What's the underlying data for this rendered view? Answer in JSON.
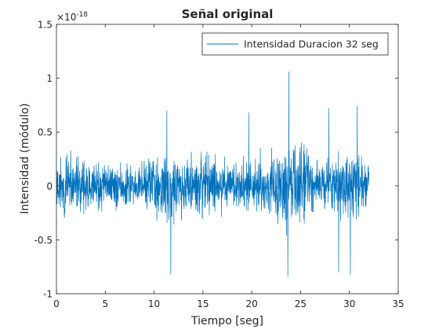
{
  "chart_data": {
    "type": "line",
    "title": "Señal original",
    "xlabel": "Tiempo [seg]",
    "ylabel": "Intensidad (módulo)",
    "xlim": [
      0,
      35
    ],
    "ylim": [
      -1.0,
      1.5
    ],
    "y_exponent_label": "×10",
    "y_exponent_power": "-18",
    "x_ticks": [
      0,
      5,
      10,
      15,
      20,
      25,
      30,
      35
    ],
    "x_tick_labels": [
      "0",
      "5",
      "10",
      "15",
      "20",
      "25",
      "30",
      "35"
    ],
    "y_ticks": [
      -1.0,
      -0.5,
      0,
      0.5,
      1.0,
      1.5
    ],
    "y_tick_labels": [
      "-1",
      "-0.5",
      "0",
      "0.5",
      "1",
      "1.5"
    ],
    "grid": false,
    "legend_position": "top-right",
    "series": [
      {
        "name": "Intensidad Duracion 32 seg",
        "color": "#0072BD",
        "x_range": [
          0,
          32
        ],
        "sample_count": 1600,
        "envelope": [
          [
            0.0,
            0.48
          ],
          [
            1.0,
            0.52
          ],
          [
            2.0,
            0.42
          ],
          [
            3.0,
            0.4
          ],
          [
            4.0,
            0.45
          ],
          [
            5.0,
            0.38
          ],
          [
            6.0,
            0.35
          ],
          [
            7.0,
            0.32
          ],
          [
            8.0,
            0.35
          ],
          [
            9.0,
            0.38
          ],
          [
            10.0,
            0.45
          ],
          [
            11.0,
            0.62
          ],
          [
            12.0,
            0.58
          ],
          [
            13.0,
            0.45
          ],
          [
            14.0,
            0.5
          ],
          [
            15.0,
            0.55
          ],
          [
            16.0,
            0.52
          ],
          [
            17.0,
            0.42
          ],
          [
            18.0,
            0.36
          ],
          [
            19.0,
            0.4
          ],
          [
            20.0,
            0.42
          ],
          [
            21.0,
            0.46
          ],
          [
            22.0,
            0.52
          ],
          [
            23.0,
            0.64
          ],
          [
            24.0,
            0.72
          ],
          [
            25.0,
            0.58
          ],
          [
            26.0,
            0.46
          ],
          [
            27.0,
            0.4
          ],
          [
            28.0,
            0.45
          ],
          [
            29.0,
            0.5
          ],
          [
            30.0,
            0.56
          ],
          [
            31.0,
            0.48
          ],
          [
            32.0,
            0.36
          ]
        ],
        "peaks": [
          {
            "x": 23.8,
            "y": 1.06
          },
          {
            "x": 23.7,
            "y": -0.84
          },
          {
            "x": 11.7,
            "y": -0.82
          },
          {
            "x": 28.9,
            "y": -0.8
          },
          {
            "x": 30.1,
            "y": -0.82
          },
          {
            "x": 11.3,
            "y": 0.7
          },
          {
            "x": 19.7,
            "y": 0.68
          },
          {
            "x": 27.9,
            "y": 0.72
          },
          {
            "x": 30.8,
            "y": 0.74
          }
        ]
      }
    ]
  }
}
